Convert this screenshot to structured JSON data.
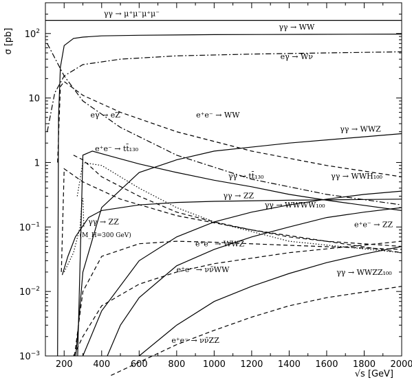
{
  "chart_data": {
    "type": "line",
    "title": "",
    "xlabel": "√s [GeV]",
    "ylabel": "σ [pb]",
    "xlim": [
      100,
      2000
    ],
    "ylim": [
      0.001,
      300
    ],
    "y_scale": "log",
    "grid": false,
    "x_ticks": [
      "200",
      "400",
      "600",
      "800",
      "1000",
      "1200",
      "1400",
      "1600",
      "1800",
      "2000"
    ],
    "y_ticks": [
      {
        "value": 0.001,
        "base": "10",
        "exp": "−3"
      },
      {
        "value": 0.01,
        "base": "10",
        "exp": "−2"
      },
      {
        "value": 0.1,
        "base": "10",
        "exp": "−1"
      },
      {
        "value": 1,
        "base": "1",
        "exp": ""
      },
      {
        "value": 10,
        "base": "10",
        "exp": ""
      },
      {
        "value": 100,
        "base": "10",
        "exp": "2"
      }
    ],
    "series": [
      {
        "name": "γγ → μ⁺μ⁻μ⁺μ⁻",
        "style": "solid",
        "x": [
          100,
          2000
        ],
        "y": [
          160,
          160
        ]
      },
      {
        "name": "γγ → WW",
        "style": "solid",
        "x": [
          165,
          170,
          180,
          200,
          250,
          300,
          400,
          600,
          1000,
          1500,
          2000
        ],
        "y": [
          0.001,
          5,
          30,
          65,
          84,
          88,
          92,
          94,
          96,
          97,
          98
        ]
      },
      {
        "name": "eγ → Wν",
        "style": "dashdot",
        "x": [
          110,
          150,
          200,
          300,
          500,
          800,
          1200,
          1600,
          2000
        ],
        "y": [
          3,
          12,
          22,
          33,
          40,
          45,
          48,
          50,
          52
        ]
      },
      {
        "name": "eγ → eZ",
        "style": "dashdot",
        "x": [
          110,
          200,
          300,
          500,
          800,
          1200,
          1600,
          2000
        ],
        "y": [
          70,
          22,
          9,
          3.5,
          1.3,
          0.55,
          0.32,
          0.22
        ]
      },
      {
        "name": "e⁺e⁻ → WW",
        "style": "dashed",
        "x": [
          165,
          180,
          200,
          300,
          500,
          800,
          1200,
          1600,
          2000
        ],
        "y": [
          1,
          15,
          18,
          11,
          6,
          3,
          1.5,
          0.9,
          0.6
        ]
      },
      {
        "name": "γγ → WWZ",
        "style": "solid",
        "x": [
          262,
          300,
          400,
          600,
          800,
          1000,
          1400,
          2000
        ],
        "y": [
          0.001,
          0.02,
          0.2,
          0.7,
          1.1,
          1.5,
          2.0,
          2.8
        ]
      },
      {
        "name": "e⁺e⁻ → tt̄₁₃₀",
        "style": "dashed",
        "x": [
          250,
          300,
          400,
          600,
          800,
          1000,
          1200,
          1400,
          1600,
          2000
        ],
        "y": [
          1.3,
          1.1,
          0.6,
          0.3,
          0.17,
          0.12,
          0.09,
          0.07,
          0.06,
          0.05
        ]
      },
      {
        "name": "γγ → tt̄₁₃₀",
        "style": "solid",
        "x": [
          272,
          300,
          350,
          450,
          600,
          800,
          1000,
          1200,
          1400,
          1600,
          2000
        ],
        "y": [
          0.001,
          1.3,
          1.5,
          1.25,
          0.95,
          0.7,
          0.53,
          0.42,
          0.32,
          0.26,
          0.18
        ]
      },
      {
        "name": "γγ → tt̄ (dotted)",
        "style": "dotted",
        "x": [
          270,
          300,
          400,
          600,
          800,
          1000,
          1400,
          2000
        ],
        "y": [
          0.3,
          1.0,
          0.9,
          0.4,
          0.2,
          0.12,
          0.06,
          0.04
        ]
      },
      {
        "name": "γγ → ZZ",
        "style": "solid",
        "x": [
          190,
          220,
          260,
          330,
          400,
          600,
          800,
          1000,
          1400,
          2000
        ],
        "y": [
          0.018,
          0.035,
          0.07,
          0.14,
          0.18,
          0.22,
          0.24,
          0.25,
          0.26,
          0.27
        ]
      },
      {
        "name": "γγ → ZZ (MH=300 GeV)",
        "style": "dotted",
        "x": [
          200,
          250,
          285,
          295,
          300,
          305
        ],
        "y": [
          0.02,
          0.04,
          0.1,
          0.25,
          0.28,
          0.1
        ]
      },
      {
        "name": "γγ → WWH₁₀₀",
        "style": "solid",
        "x": [
          300,
          400,
          600,
          800,
          1000,
          1200,
          1400,
          1600,
          1800,
          2000
        ],
        "y": [
          0.001,
          0.005,
          0.03,
          0.07,
          0.12,
          0.17,
          0.22,
          0.27,
          0.32,
          0.36
        ]
      },
      {
        "name": "γγ → WWWW₁₀₀",
        "style": "solid",
        "x": [
          430,
          500,
          600,
          800,
          1000,
          1200,
          1400,
          1600,
          1800,
          2000
        ],
        "y": [
          0.001,
          0.003,
          0.008,
          0.025,
          0.045,
          0.07,
          0.1,
          0.14,
          0.17,
          0.2
        ]
      },
      {
        "name": "e⁺e⁻ → ZZ",
        "style": "dashed",
        "x": [
          185,
          200,
          300,
          500,
          800,
          1200,
          1600,
          2000
        ],
        "y": [
          0.02,
          0.8,
          0.5,
          0.27,
          0.15,
          0.09,
          0.06,
          0.04
        ]
      },
      {
        "name": "e⁺e⁻ → WWZ",
        "style": "dashed",
        "x": [
          255,
          300,
          400,
          600,
          800,
          1000,
          1400,
          2000
        ],
        "y": [
          0.001,
          0.01,
          0.035,
          0.055,
          0.06,
          0.058,
          0.052,
          0.045
        ]
      },
      {
        "name": "γγ → WWZZ₁₀₀",
        "style": "solid",
        "x": [
          600,
          800,
          1000,
          1200,
          1400,
          1600,
          1800,
          2000
        ],
        "y": [
          0.001,
          0.003,
          0.007,
          0.012,
          0.019,
          0.028,
          0.038,
          0.05
        ]
      },
      {
        "name": "e⁺e⁻ → νν̄WW",
        "style": "dashed",
        "x": [
          250,
          300,
          400,
          600,
          800,
          1000,
          1400,
          2000
        ],
        "y": [
          0.001,
          0.002,
          0.006,
          0.013,
          0.02,
          0.027,
          0.04,
          0.06
        ]
      },
      {
        "name": "e⁺e⁻ → νν̄ZZ",
        "style": "dashed",
        "x": [
          450,
          600,
          800,
          1000,
          1200,
          1400,
          1600,
          2000
        ],
        "y": [
          0.0005,
          0.0008,
          0.0015,
          0.0025,
          0.004,
          0.006,
          0.008,
          0.012
        ]
      }
    ],
    "annotations": [
      {
        "text": "γγ → μ⁺μ⁻μ⁺μ⁻",
        "x": 560,
        "y": 185
      },
      {
        "text": "γγ → WW",
        "x": 1440,
        "y": 115
      },
      {
        "text": "eγ → Wν",
        "x": 1440,
        "y": 40
      },
      {
        "text": "eγ → eZ",
        "x": 420,
        "y": 5
      },
      {
        "text": "e⁺e⁻ → WW",
        "x": 1020,
        "y": 5
      },
      {
        "text": "γγ → WWZ",
        "x": 1780,
        "y": 3
      },
      {
        "text": "e⁺e⁻ → tt̄₁₃₀",
        "x": 480,
        "y": 1.5
      },
      {
        "text": "γγ → tt̄₁₃₀",
        "x": 1170,
        "y": 0.56
      },
      {
        "text": "γγ → WWH₁₀₀",
        "x": 1760,
        "y": 0.56
      },
      {
        "text": "γγ → ZZ",
        "x": 1130,
        "y": 0.28
      },
      {
        "text": "γγ → WWWW₁₀₀",
        "x": 1430,
        "y": 0.2
      },
      {
        "text": "γγ → ZZ",
        "x": 410,
        "y": 0.11
      },
      {
        "text": "(M_H=300 GeV)",
        "x": 420,
        "y": 0.07
      },
      {
        "text": "e⁺e⁻ → ZZ",
        "x": 1850,
        "y": 0.1
      },
      {
        "text": "e⁺e⁻ → WWZ",
        "x": 1030,
        "y": 0.05
      },
      {
        "text": "e⁺e⁻ → νν̄WW",
        "x": 940,
        "y": 0.02
      },
      {
        "text": "γγ → WWZZ₁₀₀",
        "x": 1800,
        "y": 0.018
      },
      {
        "text": "e⁺e⁻ → νν̄ZZ",
        "x": 900,
        "y": 0.0016
      }
    ]
  }
}
